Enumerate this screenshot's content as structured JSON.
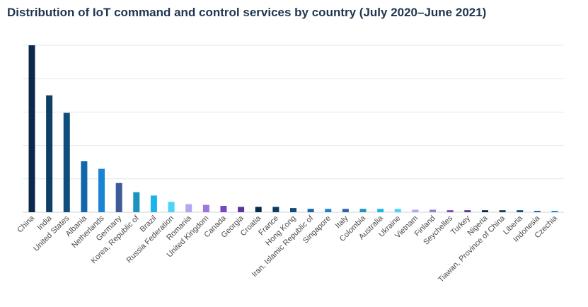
{
  "chart_data": {
    "type": "bar",
    "title": "Distribution of IoT command and control services by country (July 2020–June 2021)",
    "xlabel": "",
    "ylabel": "",
    "ylim": [
      0,
      100
    ],
    "grid": true,
    "categories": [
      "China",
      "India",
      "United States",
      "Albania",
      "Netherlands",
      "Germany",
      "Korea, Republic of",
      "Brazil",
      "Russia Federation",
      "Romania",
      "United Kingdom",
      "Canada",
      "Georgia",
      "Croatia",
      "France",
      "Hong Kong",
      "Iran, Islamic Republic of",
      "Singapore",
      "Italy",
      "Colombia",
      "Australia",
      "Ukraine",
      "Vietnam",
      "Finland",
      "Seychelles",
      "Turkey",
      "Nigeria",
      "Tiawan, Province of China",
      "Liberia",
      "Indonesia",
      "Czechia"
    ],
    "values": [
      100,
      70,
      59.5,
      30.5,
      26,
      17.5,
      12,
      10,
      6.2,
      4.8,
      4.4,
      3.8,
      3.2,
      3.2,
      3.2,
      2.5,
      2,
      2,
      2,
      2,
      2,
      2,
      1.5,
      1.5,
      1.2,
      1.2,
      1.2,
      1.2,
      1.2,
      0.8,
      0.8
    ],
    "colors": [
      "#0b2a4a",
      "#0e3d66",
      "#0f4e7a",
      "#1166ac",
      "#1a83d6",
      "#3d5a99",
      "#1a93bf",
      "#1ab4ec",
      "#4cd3f7",
      "#b7a3ee",
      "#9b78dd",
      "#7a44c6",
      "#5b33a3",
      "#0b2a4a",
      "#0f3d62",
      "#0f4e7a",
      "#1166ac",
      "#1a83d6",
      "#2d64a8",
      "#1a93bf",
      "#1ab4ec",
      "#4cd3f7",
      "#b7a3ee",
      "#9b78dd",
      "#7a44c6",
      "#5b33a3",
      "#0b2a4a",
      "#0f3d62",
      "#0f4e7a",
      "#1166ac",
      "#1a83d6"
    ]
  }
}
